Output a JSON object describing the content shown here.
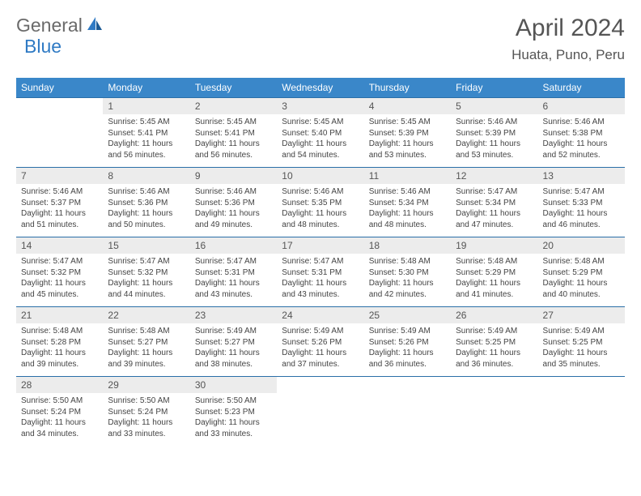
{
  "logo": {
    "part1": "General",
    "part2": "Blue"
  },
  "title": "April 2024",
  "location": "Huata, Puno, Peru",
  "colors": {
    "header_bg": "#3a87c9",
    "header_text": "#ffffff",
    "daynum_bg": "#ececec",
    "border": "#2a6fa8",
    "logo_gray": "#6a6a6a",
    "logo_blue": "#2f7ac4"
  },
  "dayNames": [
    "Sunday",
    "Monday",
    "Tuesday",
    "Wednesday",
    "Thursday",
    "Friday",
    "Saturday"
  ],
  "startOffset": 1,
  "days": [
    {
      "n": 1,
      "sr": "5:45 AM",
      "ss": "5:41 PM",
      "dl": "11 hours and 56 minutes."
    },
    {
      "n": 2,
      "sr": "5:45 AM",
      "ss": "5:41 PM",
      "dl": "11 hours and 56 minutes."
    },
    {
      "n": 3,
      "sr": "5:45 AM",
      "ss": "5:40 PM",
      "dl": "11 hours and 54 minutes."
    },
    {
      "n": 4,
      "sr": "5:45 AM",
      "ss": "5:39 PM",
      "dl": "11 hours and 53 minutes."
    },
    {
      "n": 5,
      "sr": "5:46 AM",
      "ss": "5:39 PM",
      "dl": "11 hours and 53 minutes."
    },
    {
      "n": 6,
      "sr": "5:46 AM",
      "ss": "5:38 PM",
      "dl": "11 hours and 52 minutes."
    },
    {
      "n": 7,
      "sr": "5:46 AM",
      "ss": "5:37 PM",
      "dl": "11 hours and 51 minutes."
    },
    {
      "n": 8,
      "sr": "5:46 AM",
      "ss": "5:36 PM",
      "dl": "11 hours and 50 minutes."
    },
    {
      "n": 9,
      "sr": "5:46 AM",
      "ss": "5:36 PM",
      "dl": "11 hours and 49 minutes."
    },
    {
      "n": 10,
      "sr": "5:46 AM",
      "ss": "5:35 PM",
      "dl": "11 hours and 48 minutes."
    },
    {
      "n": 11,
      "sr": "5:46 AM",
      "ss": "5:34 PM",
      "dl": "11 hours and 48 minutes."
    },
    {
      "n": 12,
      "sr": "5:47 AM",
      "ss": "5:34 PM",
      "dl": "11 hours and 47 minutes."
    },
    {
      "n": 13,
      "sr": "5:47 AM",
      "ss": "5:33 PM",
      "dl": "11 hours and 46 minutes."
    },
    {
      "n": 14,
      "sr": "5:47 AM",
      "ss": "5:32 PM",
      "dl": "11 hours and 45 minutes."
    },
    {
      "n": 15,
      "sr": "5:47 AM",
      "ss": "5:32 PM",
      "dl": "11 hours and 44 minutes."
    },
    {
      "n": 16,
      "sr": "5:47 AM",
      "ss": "5:31 PM",
      "dl": "11 hours and 43 minutes."
    },
    {
      "n": 17,
      "sr": "5:47 AM",
      "ss": "5:31 PM",
      "dl": "11 hours and 43 minutes."
    },
    {
      "n": 18,
      "sr": "5:48 AM",
      "ss": "5:30 PM",
      "dl": "11 hours and 42 minutes."
    },
    {
      "n": 19,
      "sr": "5:48 AM",
      "ss": "5:29 PM",
      "dl": "11 hours and 41 minutes."
    },
    {
      "n": 20,
      "sr": "5:48 AM",
      "ss": "5:29 PM",
      "dl": "11 hours and 40 minutes."
    },
    {
      "n": 21,
      "sr": "5:48 AM",
      "ss": "5:28 PM",
      "dl": "11 hours and 39 minutes."
    },
    {
      "n": 22,
      "sr": "5:48 AM",
      "ss": "5:27 PM",
      "dl": "11 hours and 39 minutes."
    },
    {
      "n": 23,
      "sr": "5:49 AM",
      "ss": "5:27 PM",
      "dl": "11 hours and 38 minutes."
    },
    {
      "n": 24,
      "sr": "5:49 AM",
      "ss": "5:26 PM",
      "dl": "11 hours and 37 minutes."
    },
    {
      "n": 25,
      "sr": "5:49 AM",
      "ss": "5:26 PM",
      "dl": "11 hours and 36 minutes."
    },
    {
      "n": 26,
      "sr": "5:49 AM",
      "ss": "5:25 PM",
      "dl": "11 hours and 36 minutes."
    },
    {
      "n": 27,
      "sr": "5:49 AM",
      "ss": "5:25 PM",
      "dl": "11 hours and 35 minutes."
    },
    {
      "n": 28,
      "sr": "5:50 AM",
      "ss": "5:24 PM",
      "dl": "11 hours and 34 minutes."
    },
    {
      "n": 29,
      "sr": "5:50 AM",
      "ss": "5:24 PM",
      "dl": "11 hours and 33 minutes."
    },
    {
      "n": 30,
      "sr": "5:50 AM",
      "ss": "5:23 PM",
      "dl": "11 hours and 33 minutes."
    }
  ],
  "labels": {
    "sunrise": "Sunrise:",
    "sunset": "Sunset:",
    "daylight": "Daylight:"
  }
}
